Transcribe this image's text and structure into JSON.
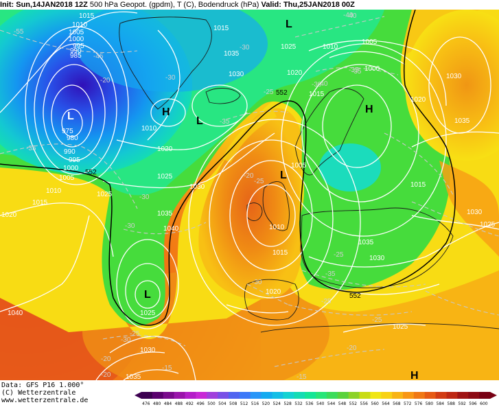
{
  "header": {
    "init_label": "Init:",
    "init_value": "Sun,14JAN2018 12Z",
    "fields": "500 hPa Geopot. (gpdm), T (C), Bodendruck (hPa)",
    "valid_label": "Valid:",
    "valid_value": "Thu,25JAN2018 00Z"
  },
  "footer": {
    "data_line": "Data: GFS P16 1.000°",
    "copyright_line": "(C) Wetterzentrale",
    "url_line": "www.wetterzentrale.de"
  },
  "colorbar": {
    "ticks": [
      "476",
      "480",
      "484",
      "488",
      "492",
      "496",
      "500",
      "504",
      "508",
      "512",
      "516",
      "520",
      "524",
      "528",
      "532",
      "536",
      "540",
      "544",
      "548",
      "552",
      "556",
      "560",
      "564",
      "568",
      "572",
      "576",
      "580",
      "584",
      "588",
      "592",
      "596",
      "600"
    ],
    "colors": [
      "#3c0050",
      "#5a006e",
      "#7a0a8c",
      "#9a14aa",
      "#b41ec8",
      "#c828d6",
      "#a040dc",
      "#7850e6",
      "#5064f0",
      "#3c78f8",
      "#2896f8",
      "#14aaf0",
      "#14bee6",
      "#14d2d2",
      "#14dcb4",
      "#14e696",
      "#28e678",
      "#3cdc5a",
      "#5ad23c",
      "#8cd228",
      "#c8dc14",
      "#f0e614",
      "#f8d214",
      "#f8b414",
      "#f89614",
      "#f07814",
      "#e65a14",
      "#d23c14",
      "#be2814",
      "#a01414",
      "#8c0a14",
      "#780014"
    ]
  },
  "map": {
    "pressure_labels": [
      "1015",
      "1010",
      "1005",
      "1000",
      "995",
      "990",
      "985",
      "975",
      "980",
      "990",
      "995",
      "1000",
      "1005",
      "1010",
      "1015",
      "1020",
      "1025",
      "1010",
      "1015",
      "1020",
      "1025",
      "1030",
      "1035",
      "1040",
      "1035",
      "1030",
      "1025",
      "1020",
      "1015",
      "1010",
      "1005",
      "1000",
      "1005",
      "1010",
      "1015",
      "1020",
      "1025",
      "1030",
      "1035",
      "1040",
      "1035",
      "1030",
      "1025",
      "1020",
      "1015",
      "1030",
      "1035",
      "1030",
      "1025",
      "1020",
      "1015",
      "1020",
      "1020",
      "1025",
      "1030",
      "1035",
      "1040",
      "1005",
      "1010",
      "1015",
      "1025",
      "1030",
      "1035"
    ],
    "temp_labels": [
      "-55",
      "-45",
      "-30",
      "-20",
      "-40",
      "-35",
      "-30",
      "-25",
      "-35",
      "-40",
      "-35",
      "-30",
      "-20",
      "-25",
      "-30",
      "-30",
      "-25",
      "-35",
      "-25",
      "-20",
      "-25",
      "-30",
      "-20",
      "-15",
      "-15",
      "-20",
      "-25",
      "-30",
      "-35",
      "-40"
    ],
    "highs_lows": [
      "L",
      "L",
      "H",
      "L",
      "L",
      "H",
      "L",
      "H"
    ],
    "contour_552_label": "552"
  }
}
